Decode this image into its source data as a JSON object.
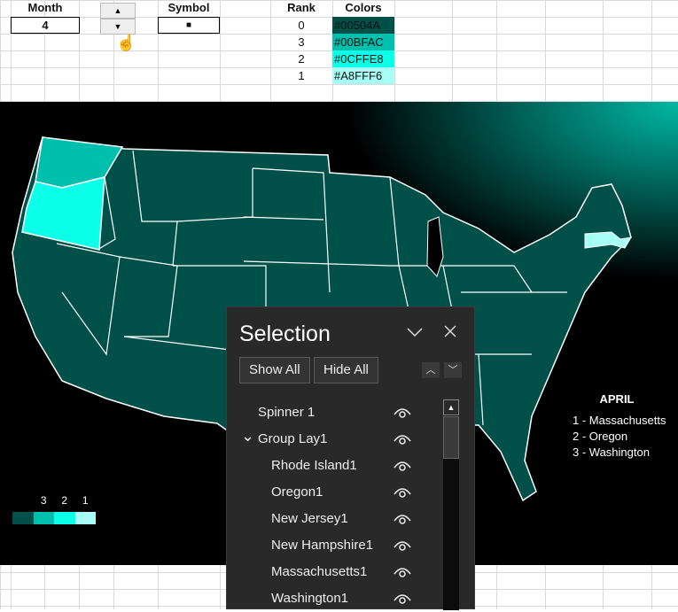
{
  "sheet": {
    "month_label": "Month",
    "month_value": "4",
    "symbol_label": "Symbol",
    "symbol_value": "■",
    "rank_header": "Rank",
    "colors_header": "Colors",
    "ranks": [
      {
        "rank": "0",
        "color": "#00504A"
      },
      {
        "rank": "3",
        "color": "#00BFAC"
      },
      {
        "rank": "2",
        "color": "#0CFFE8"
      },
      {
        "rank": "1",
        "color": "#A8FFF6"
      }
    ]
  },
  "map": {
    "legend": [
      "3",
      "2",
      "1"
    ],
    "title": "APRIL",
    "top3": [
      "1 - Massachusetts",
      "2 - Oregon",
      "3 - Washington"
    ]
  },
  "selection_pane": {
    "title": "Selection",
    "show_all": "Show All",
    "hide_all": "Hide All",
    "items": [
      {
        "label": "Spinner 1",
        "level": 0
      },
      {
        "label": "Group Lay1",
        "level": 0,
        "expanded": true
      },
      {
        "label": "Rhode Island1",
        "level": 1
      },
      {
        "label": "Oregon1",
        "level": 1
      },
      {
        "label": "New Jersey1",
        "level": 1
      },
      {
        "label": "New Hampshire1",
        "level": 1
      },
      {
        "label": "Massachusetts1",
        "level": 1
      },
      {
        "label": "Washington1",
        "level": 1
      }
    ]
  }
}
